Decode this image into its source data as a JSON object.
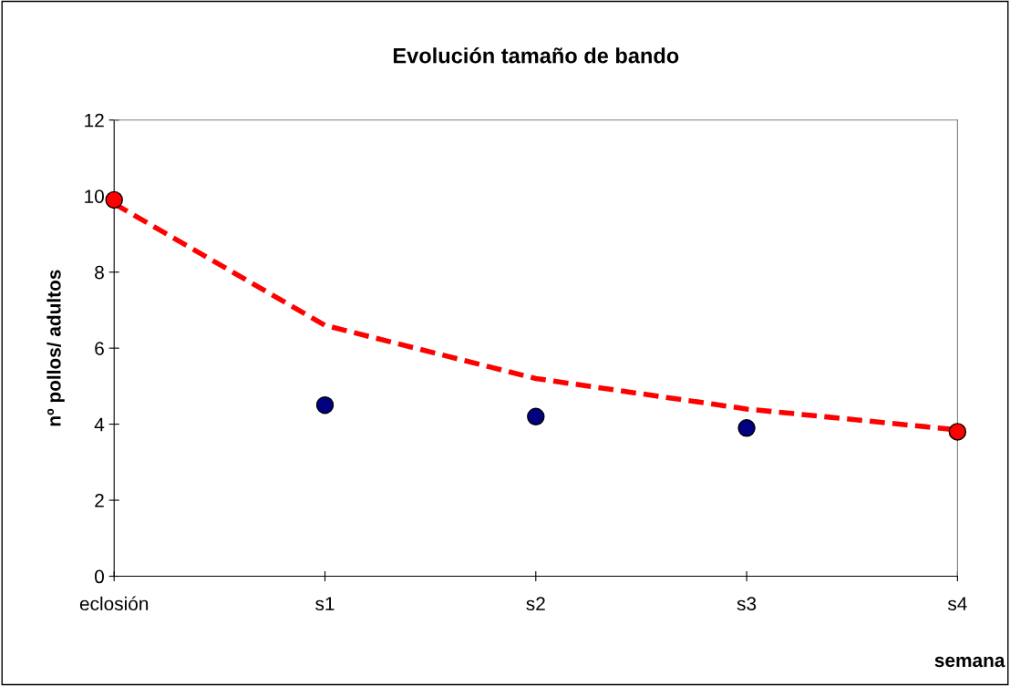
{
  "chart_data": {
    "type": "scatter",
    "title": "Evolución tamaño de bando",
    "xlabel": "semana",
    "ylabel": "nº pollos/ adultos",
    "categories": [
      "eclosión",
      "s1",
      "s2",
      "s3",
      "s4"
    ],
    "series": [
      {
        "color": "#ff0000",
        "values": [
          9.9,
          null,
          null,
          null,
          3.8
        ],
        "marker": "circle"
      },
      {
        "color": "#000080",
        "values": [
          null,
          4.5,
          4.2,
          3.9,
          null
        ],
        "marker": "circle"
      },
      {
        "type": "line",
        "color": "#ff0000",
        "line_style": "dashed",
        "marker": "none",
        "values": [
          9.8,
          6.6,
          5.2,
          4.4,
          3.85
        ]
      }
    ],
    "ylim": [
      0,
      12
    ],
    "yticks": [
      0,
      2,
      4,
      6,
      8,
      10,
      12
    ],
    "grid": false
  }
}
